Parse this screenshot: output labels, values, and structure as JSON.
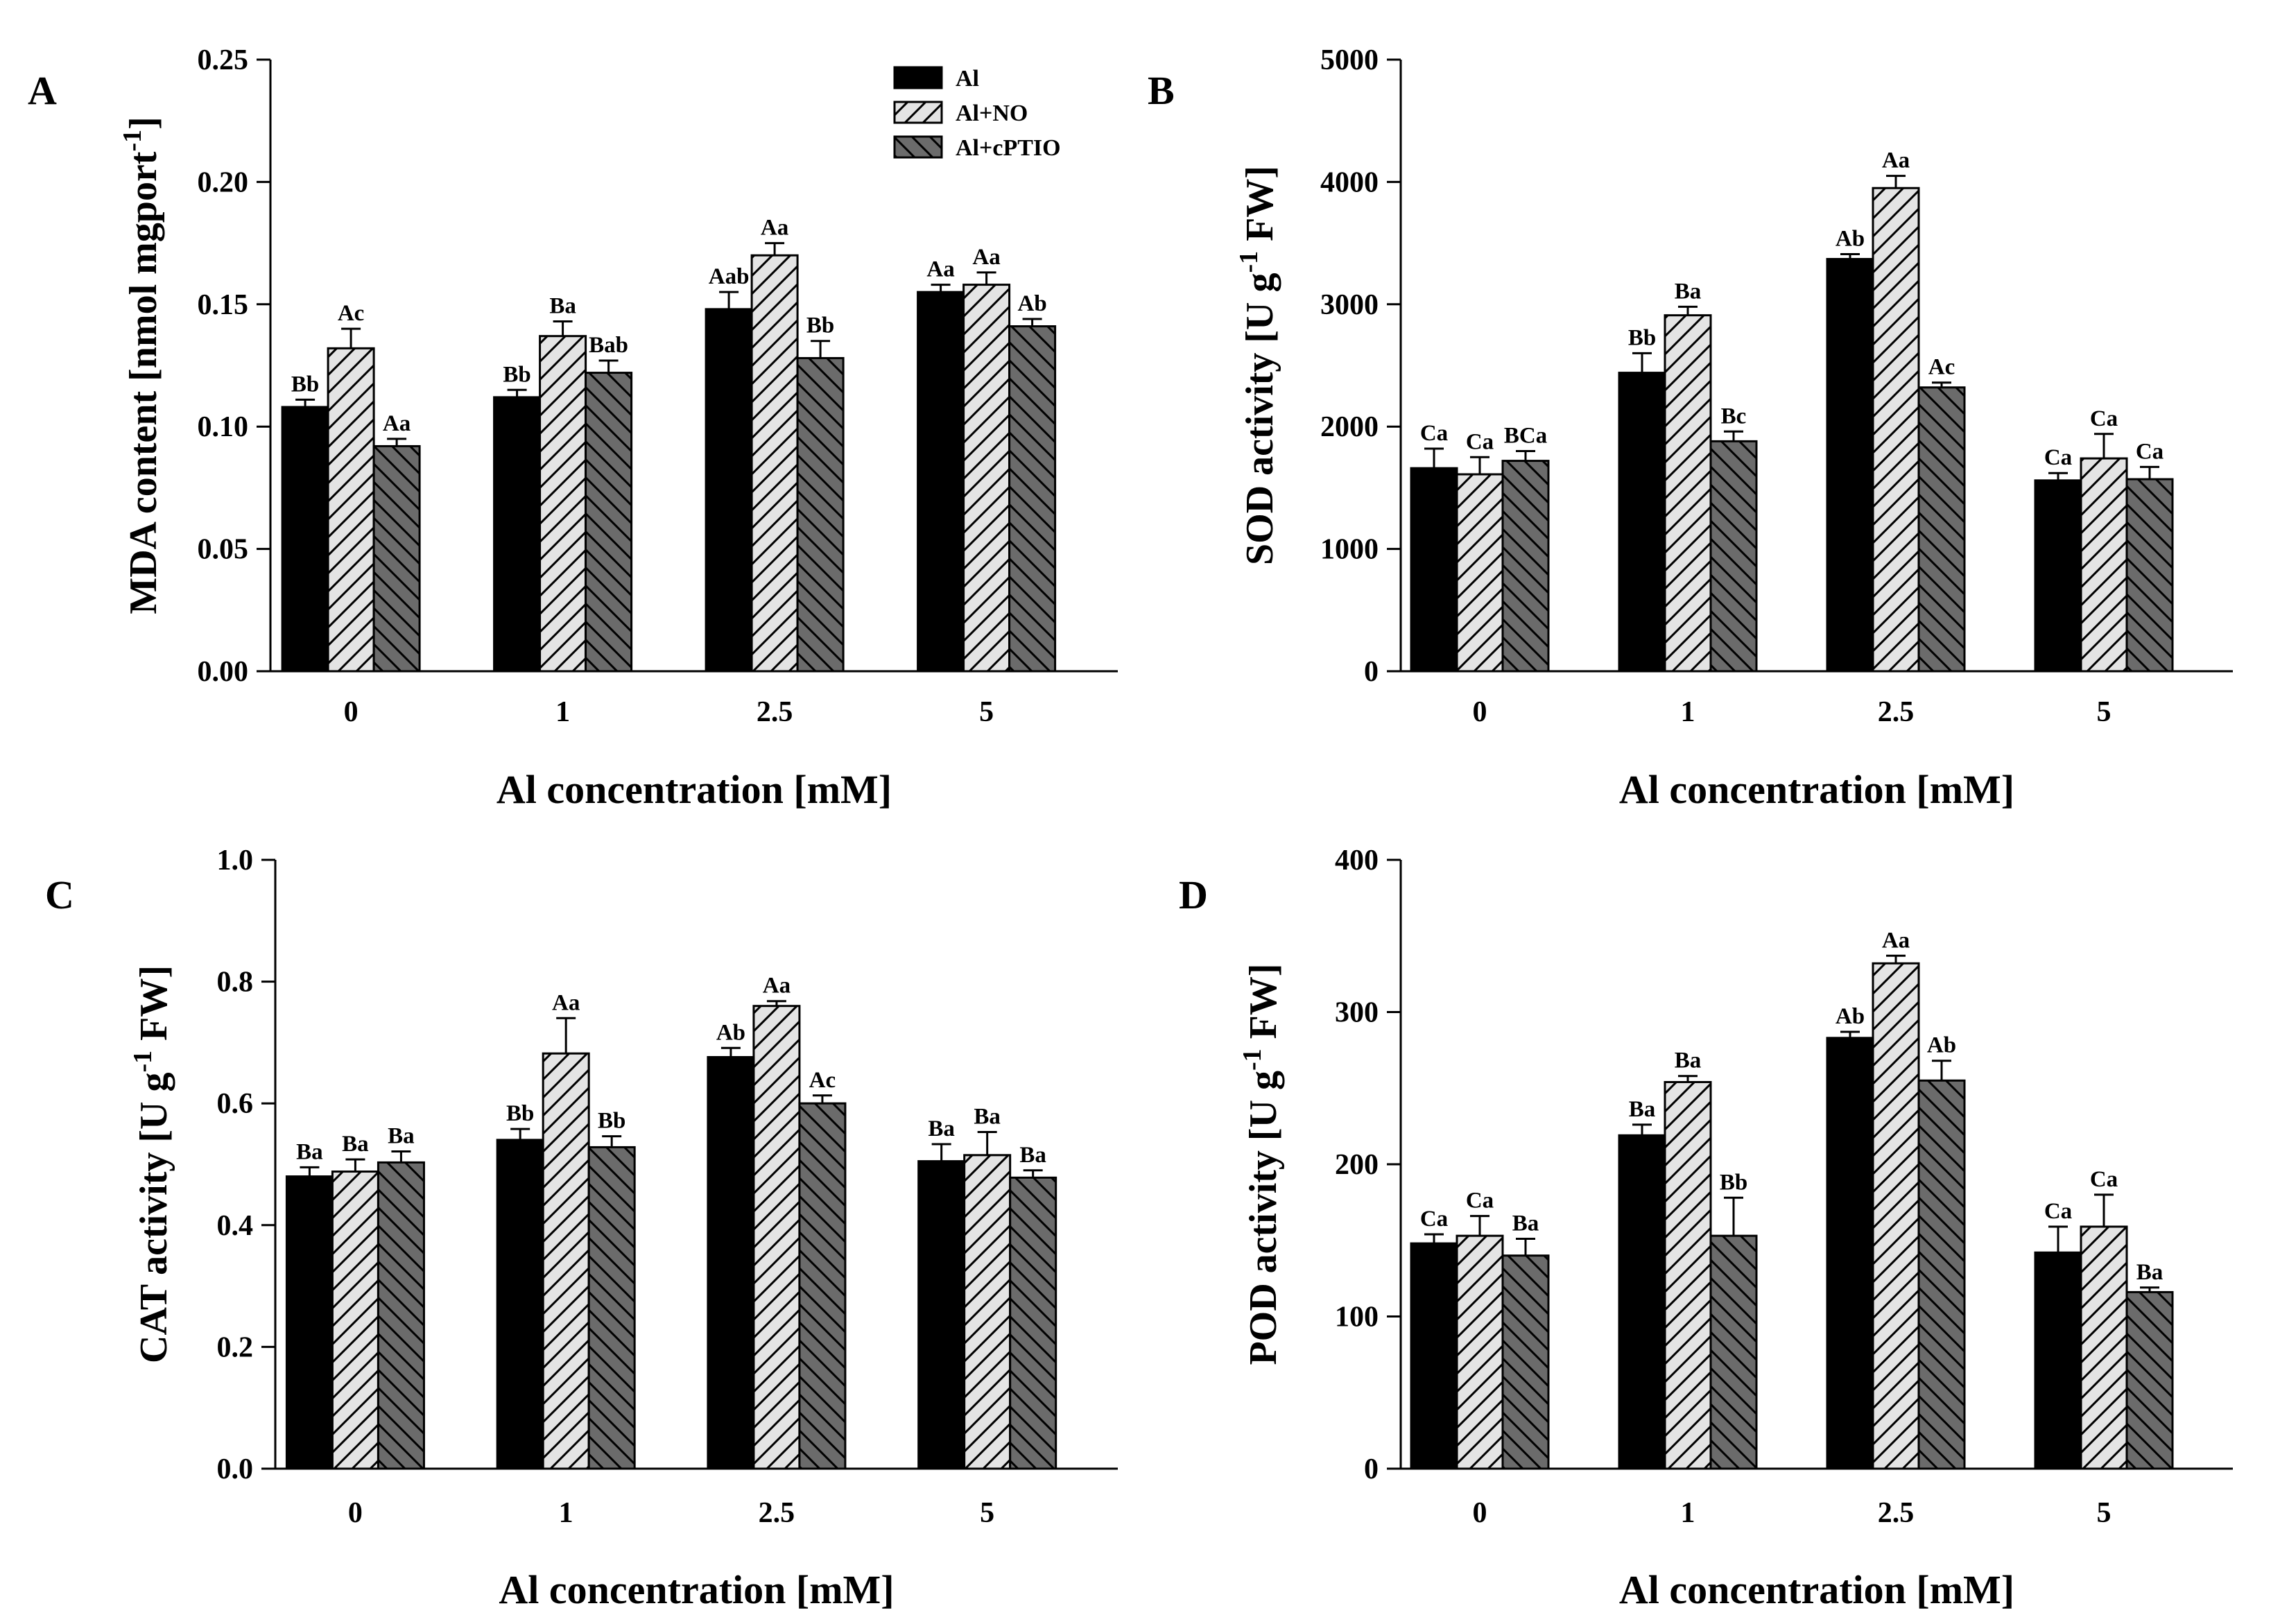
{
  "legend": {
    "entries": [
      {
        "key": "al",
        "label": "Al"
      },
      {
        "key": "al_no",
        "label": "Al+NO"
      },
      {
        "key": "al_cptio",
        "label": "Al+cPTIO"
      }
    ]
  },
  "chart_data": [
    {
      "type": "bar",
      "panel": "A",
      "ylabel": "MDA content [nmol mgport",
      "ylabel_sup": "-1",
      "ylabel_suffix": "]",
      "xlabel": "Al concentration [mM]",
      "categories": [
        "0",
        "1",
        "2.5",
        "5"
      ],
      "ylim": [
        0,
        0.25
      ],
      "yticks": [
        "0.00",
        "0.05",
        "0.10",
        "0.15",
        "0.20",
        "0.25"
      ],
      "series": [
        {
          "name": "Al",
          "values": [
            0.108,
            0.112,
            0.148,
            0.155
          ],
          "errors": [
            0.003,
            0.003,
            0.007,
            0.003
          ],
          "labels": [
            "Bb",
            "Bb",
            "Aab",
            "Aa"
          ]
        },
        {
          "name": "Al+NO",
          "values": [
            0.132,
            0.137,
            0.17,
            0.158
          ],
          "errors": [
            0.008,
            0.006,
            0.005,
            0.005
          ],
          "labels": [
            "Ac",
            "Ba",
            "Aa",
            "Aa"
          ]
        },
        {
          "name": "Al+cPTIO",
          "values": [
            0.092,
            0.122,
            0.128,
            0.141
          ],
          "errors": [
            0.003,
            0.005,
            0.007,
            0.003
          ],
          "labels": [
            "Aa",
            "Bab",
            "Bb",
            "Ab"
          ]
        }
      ]
    },
    {
      "type": "bar",
      "panel": "B",
      "ylabel": "SOD activity [U g",
      "ylabel_sup": "-1",
      "ylabel_suffix": " FW]",
      "xlabel": "Al concentration [mM]",
      "categories": [
        "0",
        "1",
        "2.5",
        "5"
      ],
      "ylim": [
        0,
        5000
      ],
      "yticks": [
        "0",
        "1000",
        "2000",
        "3000",
        "4000",
        "5000"
      ],
      "series": [
        {
          "name": "Al",
          "values": [
            1660,
            2440,
            3370,
            1560
          ],
          "errors": [
            160,
            160,
            40,
            60
          ],
          "labels": [
            "Ca",
            "Bb",
            "Ab",
            "Ca"
          ]
        },
        {
          "name": "Al+NO",
          "values": [
            1610,
            2910,
            3950,
            1740
          ],
          "errors": [
            140,
            70,
            100,
            200
          ],
          "labels": [
            "Ca",
            "Ba",
            "Aa",
            "Ca"
          ]
        },
        {
          "name": "Al+cPTIO",
          "values": [
            1720,
            1880,
            2320,
            1570
          ],
          "errors": [
            80,
            80,
            40,
            100
          ],
          "labels": [
            "BCa",
            "Bc",
            "Ac",
            "Ca"
          ]
        }
      ]
    },
    {
      "type": "bar",
      "panel": "C",
      "ylabel": "CAT activity [U g",
      "ylabel_sup": "-1",
      "ylabel_suffix": " FW]",
      "xlabel": "Al concentration [mM]",
      "categories": [
        "0",
        "1",
        "2.5",
        "5"
      ],
      "ylim": [
        0,
        1.0
      ],
      "yticks": [
        "0.0",
        "0.2",
        "0.4",
        "0.6",
        "0.8",
        "1.0"
      ],
      "series": [
        {
          "name": "Al",
          "values": [
            0.48,
            0.54,
            0.676,
            0.505
          ],
          "errors": [
            0.015,
            0.018,
            0.015,
            0.028
          ],
          "labels": [
            "Ba",
            "Bb",
            "Ab",
            "Ba"
          ]
        },
        {
          "name": "Al+NO",
          "values": [
            0.488,
            0.682,
            0.76,
            0.515
          ],
          "errors": [
            0.02,
            0.058,
            0.008,
            0.038
          ],
          "labels": [
            "Ba",
            "Aa",
            "Aa",
            "Ba"
          ]
        },
        {
          "name": "Al+cPTIO",
          "values": [
            0.503,
            0.528,
            0.6,
            0.478
          ],
          "errors": [
            0.018,
            0.018,
            0.013,
            0.012
          ],
          "labels": [
            "Ba",
            "Bb",
            "Ac",
            "Ba"
          ]
        }
      ]
    },
    {
      "type": "bar",
      "panel": "D",
      "ylabel": "POD activity [U g",
      "ylabel_sup": "-1",
      "ylabel_suffix": " FW]",
      "xlabel": "Al concentration [mM]",
      "categories": [
        "0",
        "1",
        "2.5",
        "5"
      ],
      "ylim": [
        0,
        400
      ],
      "yticks": [
        "0",
        "100",
        "200",
        "300",
        "400"
      ],
      "series": [
        {
          "name": "Al",
          "values": [
            148,
            219,
            283,
            142
          ],
          "errors": [
            6,
            7,
            4,
            17
          ],
          "labels": [
            "Ca",
            "Ba",
            "Ab",
            "Ca"
          ]
        },
        {
          "name": "Al+NO",
          "values": [
            153,
            254,
            332,
            159
          ],
          "errors": [
            13,
            4,
            5,
            21
          ],
          "labels": [
            "Ca",
            "Ba",
            "Aa",
            "Ca"
          ]
        },
        {
          "name": "Al+cPTIO",
          "values": [
            140,
            153,
            255,
            116
          ],
          "errors": [
            11,
            25,
            13,
            3
          ],
          "labels": [
            "Ba",
            "Bb",
            "Ab",
            "Ba"
          ]
        }
      ]
    }
  ]
}
